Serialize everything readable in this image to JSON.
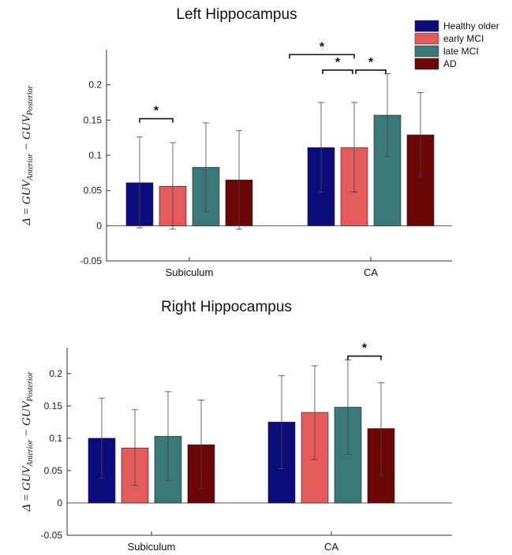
{
  "chart_data": [
    {
      "type": "bar",
      "title": "Left Hippocampus",
      "ylabel_parts": {
        "prefix": "Δ = GUV",
        "sub1": "Anterior",
        "mid": " − GUV",
        "sub2": "Posterior"
      },
      "categories": [
        "Subiculum",
        "CA"
      ],
      "ylim": [
        -0.05,
        0.25
      ],
      "yticks": [
        -0.05,
        0,
        0.05,
        0.1,
        0.15,
        0.2
      ],
      "ytick_labels": [
        "-0.05",
        "0",
        "0.05",
        "0.1",
        "0.15",
        "0.2"
      ],
      "series": [
        {
          "name": "Healthy older",
          "color": "#0b0b7a",
          "values": [
            0.061,
            0.111
          ],
          "err_low": [
            -0.003,
            0.048
          ],
          "err_high": [
            0.126,
            0.175
          ]
        },
        {
          "name": "early MCI",
          "color": "#e35b5b",
          "values": [
            0.056,
            0.111
          ],
          "err_low": [
            -0.005,
            0.048
          ],
          "err_high": [
            0.118,
            0.175
          ]
        },
        {
          "name": "late MCI",
          "color": "#3b7878",
          "values": [
            0.083,
            0.157
          ],
          "err_low": [
            0.02,
            0.098
          ],
          "err_high": [
            0.146,
            0.216
          ]
        },
        {
          "name": "AD",
          "color": "#6b0606",
          "values": [
            0.065,
            0.129
          ],
          "err_low": [
            -0.005,
            0.07
          ],
          "err_high": [
            0.135,
            0.189
          ]
        }
      ],
      "significance": [
        {
          "category": 0,
          "from": 0,
          "to": 1,
          "label": "*",
          "level": 0.152
        },
        {
          "category": 1,
          "from": 0,
          "to": 1,
          "label": "*",
          "level": 0.221
        },
        {
          "category": 1,
          "from": 1,
          "to": 2,
          "label": "*",
          "level": 0.221
        },
        {
          "category": 1,
          "from": -1,
          "to": 1,
          "label": "*",
          "level": 0.243
        }
      ],
      "legend": {
        "placement": "top-right",
        "entries": [
          "Healthy older",
          "early MCI",
          "late MCI",
          "AD"
        ]
      },
      "grid": false
    },
    {
      "type": "bar",
      "title": "Right Hippocampus",
      "ylabel_parts": {
        "prefix": "Δ = GUV",
        "sub1": "Anterior",
        "mid": " − GUV",
        "sub2": "Posterior"
      },
      "categories": [
        "Subiculum",
        "CA"
      ],
      "ylim": [
        -0.05,
        0.24
      ],
      "yticks": [
        -0.05,
        0,
        0.05,
        0.1,
        0.15,
        0.2
      ],
      "ytick_labels": [
        "-0.05",
        "0",
        "0.05",
        "0.1",
        "0.15",
        "0.2"
      ],
      "series": [
        {
          "name": "Healthy older",
          "color": "#0b0b7a",
          "values": [
            0.1,
            0.125
          ],
          "err_low": [
            0.038,
            0.053
          ],
          "err_high": [
            0.162,
            0.197
          ]
        },
        {
          "name": "early MCI",
          "color": "#e35b5b",
          "values": [
            0.085,
            0.14
          ],
          "err_low": [
            0.027,
            0.067
          ],
          "err_high": [
            0.144,
            0.212
          ]
        },
        {
          "name": "late MCI",
          "color": "#3b7878",
          "values": [
            0.103,
            0.148
          ],
          "err_low": [
            0.035,
            0.075
          ],
          "err_high": [
            0.172,
            0.221
          ]
        },
        {
          "name": "AD",
          "color": "#6b0606",
          "values": [
            0.09,
            0.115
          ],
          "err_low": [
            0.022,
            0.043
          ],
          "err_high": [
            0.159,
            0.186
          ]
        }
      ],
      "significance": [
        {
          "category": 1,
          "from": 2,
          "to": 3,
          "label": "*",
          "level": 0.227
        }
      ],
      "legend": {
        "placement": "none",
        "entries": []
      },
      "grid": false
    }
  ]
}
